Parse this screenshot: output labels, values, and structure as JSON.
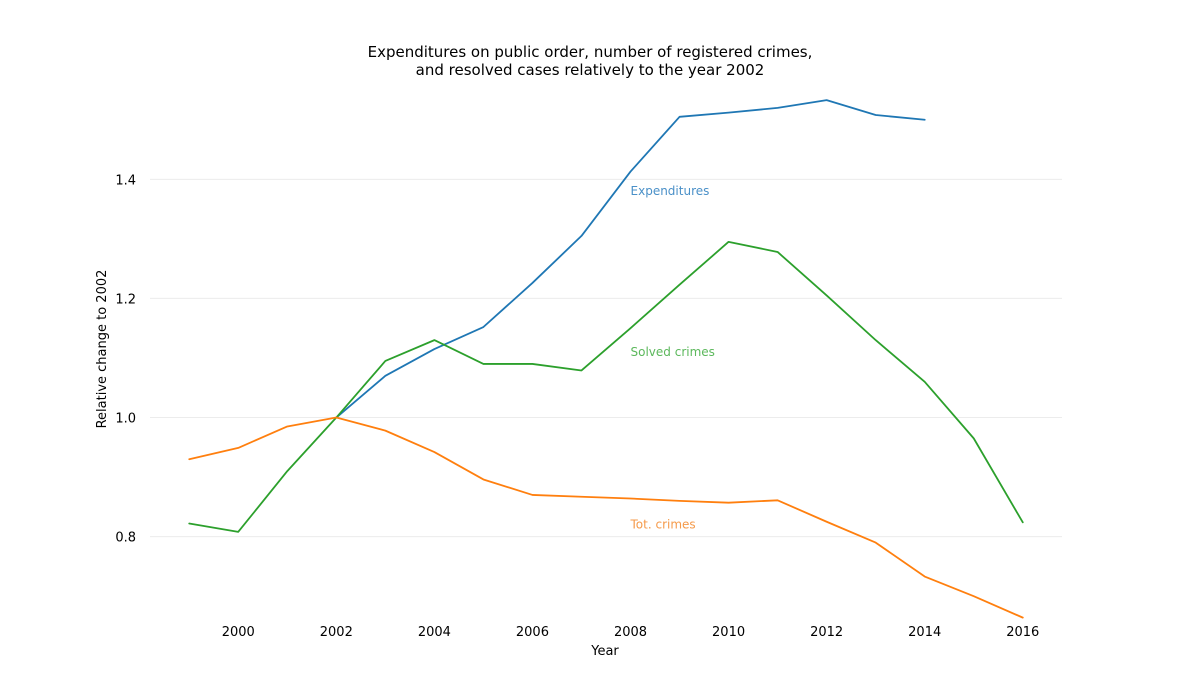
{
  "chart_data": {
    "type": "line",
    "title_lines": [
      "Expenditures on public order, number of registered crimes,",
      "and resolved cases relatively to the year 2002"
    ],
    "xlabel": "Year",
    "ylabel": "Relative change to 2002",
    "xlim": [
      1998.2,
      2016.8
    ],
    "ylim": [
      0.66,
      1.55
    ],
    "x_ticks": [
      2000,
      2002,
      2004,
      2006,
      2008,
      2010,
      2012,
      2014,
      2016
    ],
    "y_ticks": [
      0.8,
      1.0,
      1.2,
      1.4
    ],
    "grid": "horizontal",
    "legend": "none",
    "series": [
      {
        "name": "Expenditures",
        "color": "#1f77b4",
        "label_color": "#4a90c8",
        "label_at": [
          2008,
          1.38
        ],
        "x": [
          2002,
          2003,
          2004,
          2005,
          2006,
          2007,
          2008,
          2009,
          2010,
          2011,
          2012,
          2013,
          2014
        ],
        "values": [
          1.0,
          1.07,
          1.115,
          1.152,
          1.226,
          1.305,
          1.413,
          1.505,
          1.512,
          1.52,
          1.533,
          1.508,
          1.5
        ]
      },
      {
        "name": "Solved crimes",
        "color": "#2ca02c",
        "label_color": "#5cb85c",
        "label_at": [
          2008,
          1.11
        ],
        "x": [
          1999,
          2000,
          2001,
          2002,
          2003,
          2004,
          2005,
          2006,
          2007,
          2008,
          2009,
          2010,
          2011,
          2012,
          2013,
          2014,
          2015,
          2016
        ],
        "values": [
          0.822,
          0.808,
          0.91,
          1.0,
          1.095,
          1.13,
          1.09,
          1.09,
          1.079,
          1.15,
          1.223,
          1.295,
          1.278,
          1.205,
          1.13,
          1.06,
          0.965,
          0.824
        ]
      },
      {
        "name": "Tot. crimes",
        "color": "#ff7f0e",
        "label_color": "#f59a4a",
        "label_at": [
          2008,
          0.82
        ],
        "x": [
          1999,
          2000,
          2001,
          2002,
          2003,
          2004,
          2005,
          2006,
          2007,
          2008,
          2009,
          2010,
          2011,
          2012,
          2013,
          2014,
          2015,
          2016
        ],
        "values": [
          0.93,
          0.949,
          0.985,
          1.0,
          0.978,
          0.942,
          0.896,
          0.87,
          0.867,
          0.864,
          0.86,
          0.857,
          0.861,
          0.825,
          0.79,
          0.733,
          0.7,
          0.664
        ]
      }
    ]
  }
}
